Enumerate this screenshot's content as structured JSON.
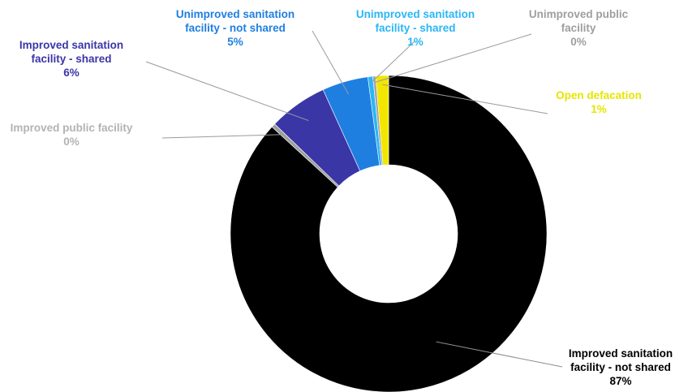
{
  "chart_data": {
    "type": "pie",
    "donut": true,
    "title": "",
    "slices": [
      {
        "label": "Improved sanitation facility - not shared",
        "label_lines": [
          "Improved sanitation",
          "facility - not shared"
        ],
        "value_label": "87%",
        "value": 86.8,
        "color": "#000000",
        "label_color": "#000000"
      },
      {
        "label": "Improved public facility",
        "label_lines": [
          "Improved public facility"
        ],
        "value_label": "0%",
        "value": 0.4,
        "color": "#9e9e9e",
        "label_color": "#b3b3b3"
      },
      {
        "label": "Improved sanitation facility - shared",
        "label_lines": [
          "Improved sanitation",
          "facility - shared"
        ],
        "value_label": "6%",
        "value": 6.0,
        "color": "#3a36a6",
        "label_color": "#3a36a6"
      },
      {
        "label": "Unimproved sanitation facility - not shared",
        "label_lines": [
          "Unimproved sanitation",
          "facility - not shared"
        ],
        "value_label": "5%",
        "value": 4.7,
        "color": "#1f7fe0",
        "label_color": "#1f7fe0"
      },
      {
        "label": "Unimproved sanitation facility - shared",
        "label_lines": [
          "Unimproved sanitation",
          "facility - shared"
        ],
        "value_label": "1%",
        "value": 0.5,
        "color": "#29b6f6",
        "label_color": "#29b6f6"
      },
      {
        "label": "Unimproved public facility",
        "label_lines": [
          "Unimproved public",
          "facility"
        ],
        "value_label": "0%",
        "value": 0.3,
        "color": "#a6a6a6",
        "label_color": "#9e9e9e"
      },
      {
        "label": "Open defacation",
        "label_lines": [
          "Open defacation"
        ],
        "value_label": "1%",
        "value": 1.3,
        "color": "#f2e600",
        "label_color": "#e6e600"
      }
    ],
    "legend": "none"
  }
}
